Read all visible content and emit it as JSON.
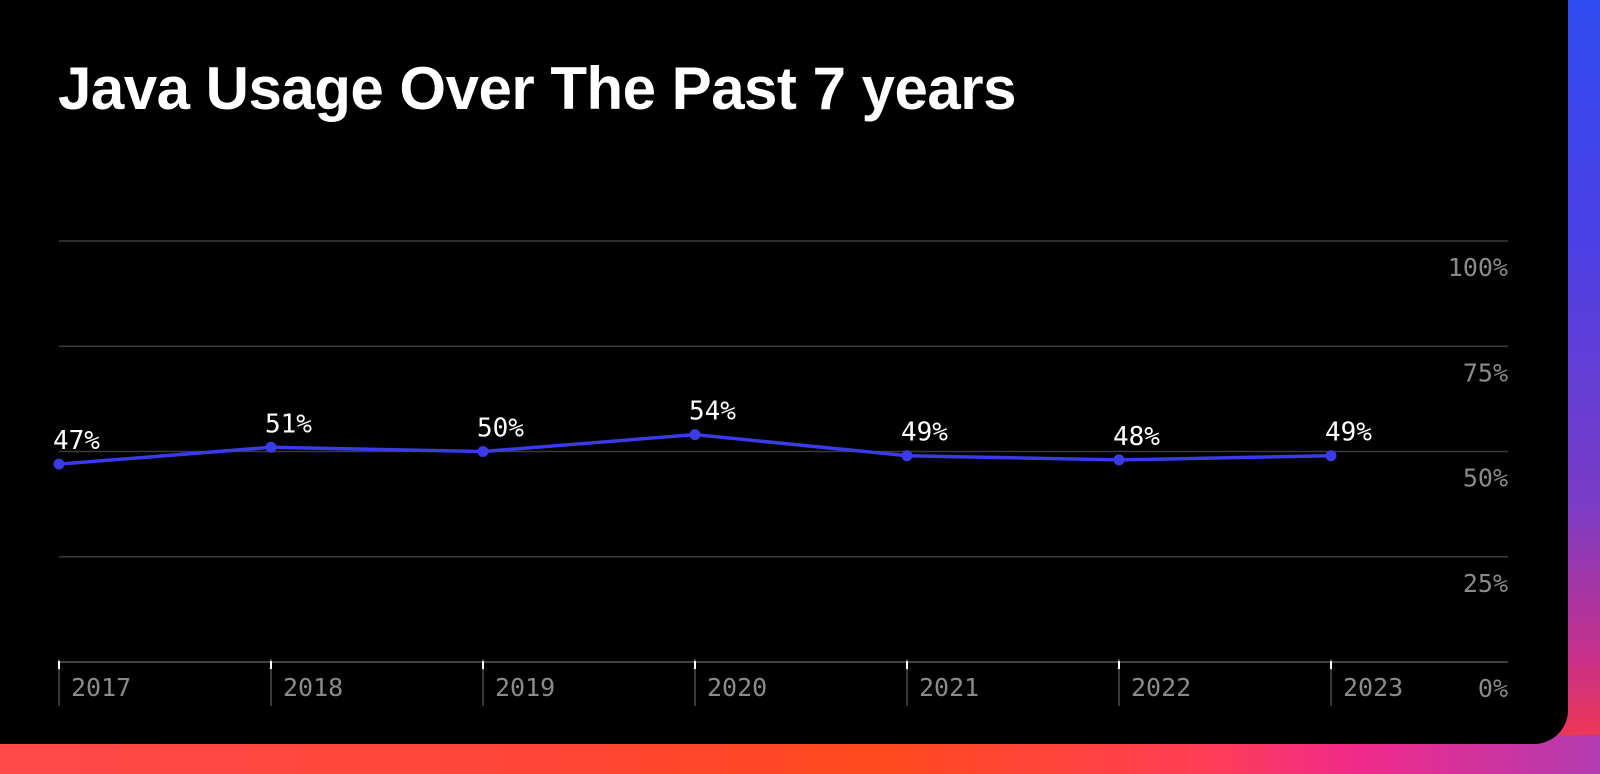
{
  "chart_data": {
    "type": "line",
    "title": "Java Usage Over The Past 7 years",
    "x": [
      "2017",
      "2018",
      "2019",
      "2020",
      "2021",
      "2022",
      "2023"
    ],
    "series": [
      {
        "values": [
          47,
          51,
          50,
          54,
          49,
          48,
          49
        ],
        "labels": [
          "47%",
          "51%",
          "50%",
          "54%",
          "49%",
          "48%",
          "49%"
        ]
      }
    ],
    "ylim": [
      0,
      100
    ],
    "yticks": [
      0,
      25,
      50,
      75,
      100
    ],
    "ytick_labels": [
      "0%",
      "25%",
      "50%",
      "75%",
      "100%"
    ],
    "grid": true,
    "y_axis_side": "right",
    "colors": {
      "line": "#3a3ae6",
      "grid": "#3a3a3a",
      "axis_text": "#8a8a8a",
      "label_text": "#ffffff",
      "background": "#000000"
    }
  }
}
